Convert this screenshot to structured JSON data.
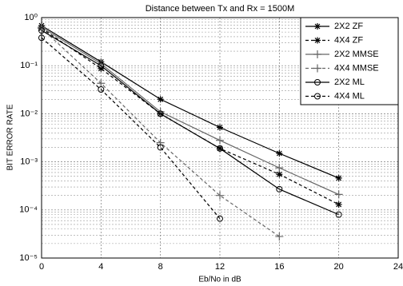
{
  "chart_data": {
    "type": "line",
    "title": "Distance between Tx and Rx = 1500M",
    "x_label": "Eb/No in dB",
    "y_label": "BIT ERROR RATE",
    "x": [
      0,
      4,
      8,
      12,
      16,
      20
    ],
    "xlim": [
      0,
      24
    ],
    "xticks": [
      0,
      4,
      8,
      12,
      16,
      20,
      24
    ],
    "ylim": [
      1e-05,
      1
    ],
    "log_y": true,
    "grid": true,
    "legend": "top-right",
    "yticks": [
      {
        "value": 1,
        "label": "10⁰"
      },
      {
        "value": 0.1,
        "label": "10⁻¹"
      },
      {
        "value": 0.01,
        "label": "10⁻²"
      },
      {
        "value": 0.001,
        "label": "10⁻³"
      },
      {
        "value": 0.0001,
        "label": "10⁻⁴"
      },
      {
        "value": 1e-05,
        "label": "10⁻⁵"
      }
    ],
    "series": [
      {
        "name": "2X2 ZF",
        "color": "#000000",
        "dash": "solid",
        "marker": "star",
        "values": [
          0.68,
          0.12,
          0.02,
          0.0052,
          0.0015,
          0.00046
        ]
      },
      {
        "name": "4X4 ZF",
        "color": "#000000",
        "dash": "dashed",
        "marker": "star",
        "values": [
          0.6,
          0.087,
          0.01,
          0.0019,
          0.00055,
          0.00013
        ]
      },
      {
        "name": "2X2 MMSE",
        "color": "#666666",
        "dash": "solid",
        "marker": "plus",
        "values": [
          0.63,
          0.11,
          0.011,
          0.0028,
          0.00075,
          0.00021
        ]
      },
      {
        "name": "4X4 MMSE",
        "color": "#666666",
        "dash": "dashed",
        "marker": "plus",
        "values": [
          0.6,
          0.043,
          0.0025,
          0.0002,
          2.8e-05,
          null
        ]
      },
      {
        "name": "2X2 ML",
        "color": "#000000",
        "dash": "solid",
        "marker": "circle",
        "values": [
          0.54,
          0.1,
          0.01,
          0.0019,
          0.00027,
          8e-05
        ]
      },
      {
        "name": "4X4 ML",
        "color": "#000000",
        "dash": "dashed",
        "marker": "circle",
        "values": [
          0.38,
          0.032,
          0.002,
          6.6e-05,
          null,
          null
        ]
      }
    ]
  }
}
